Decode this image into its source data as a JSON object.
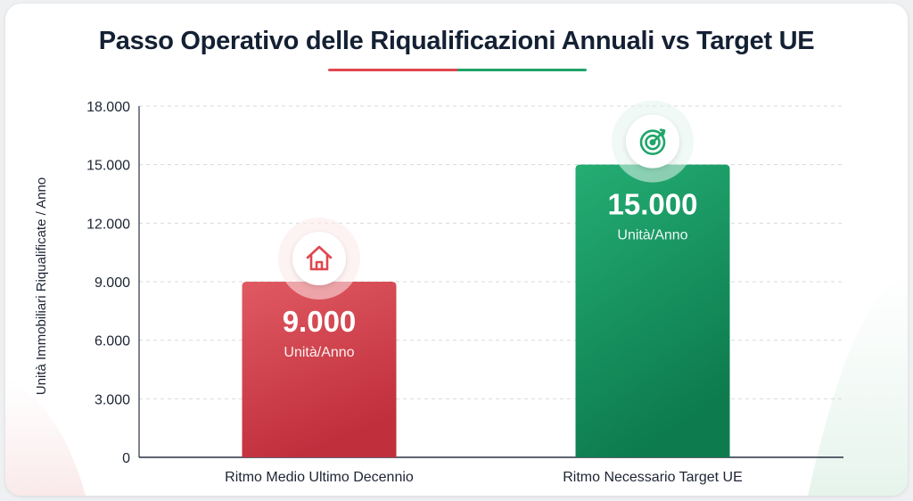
{
  "chart_data": {
    "type": "bar",
    "title": "Passo Operativo delle Riqualificazioni Annuali vs Target UE",
    "xlabel": "",
    "ylabel": "Unità Immobiliari Riqualificate / Anno",
    "ylim": [
      0,
      18000
    ],
    "yticks": [
      0,
      3000,
      6000,
      9000,
      12000,
      15000,
      18000
    ],
    "ytick_labels": [
      "0",
      "3.000",
      "6.000",
      "9.000",
      "12.000",
      "15.000",
      "18.000"
    ],
    "grid": true,
    "categories": [
      "Ritmo Medio Ultimo Decennio",
      "Ritmo Necessario Target UE"
    ],
    "values": [
      9000,
      15000
    ],
    "value_labels": [
      "9.000",
      "15.000"
    ],
    "unit_label": "Unità/Anno",
    "bar_icons": [
      "house-icon",
      "target-icon"
    ],
    "colors": {
      "bar_1": "#d9434d",
      "bar_2": "#1f9e68",
      "accent_red": "#e0474f",
      "accent_green": "#1fa56a"
    }
  }
}
